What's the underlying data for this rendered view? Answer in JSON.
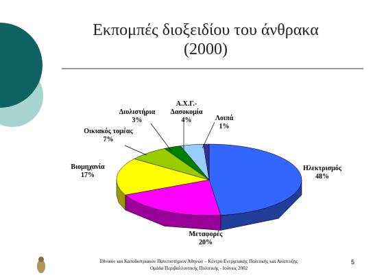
{
  "chart_data": {
    "type": "pie3d",
    "title": "Εκπομπές διοξειδίου του άνθρακα (2000)",
    "categories": [
      "Ηλεκτρισμός",
      "Μεταφορές",
      "Βιομηχανία",
      "Οικιακός τομέας",
      "Διυλιστήρια",
      "Α.Χ.Γ.- Δασοκομία",
      "Λοιπά"
    ],
    "values": [
      48,
      20,
      17,
      7,
      3,
      4,
      1
    ],
    "value_labels": [
      "48%",
      "20%",
      "17%",
      "7%",
      "3%",
      "4%",
      "1%"
    ],
    "colors": [
      "#3366ff",
      "#ff00ff",
      "#ffff00",
      "#99cc00",
      "#008000",
      "#99ccff",
      "#333399"
    ]
  },
  "footer": {
    "line1": "Εθνικόν και Καποδιστριακόν Πανεπιστήμιον Αθηνών – Κέντρο Ενεργειακής Πολιτικής και Ανάπτυξης",
    "line2": "Ομάδα Περιβαλλοντικής Πολιτικής - Ιούνιος 2002",
    "page": "5"
  }
}
